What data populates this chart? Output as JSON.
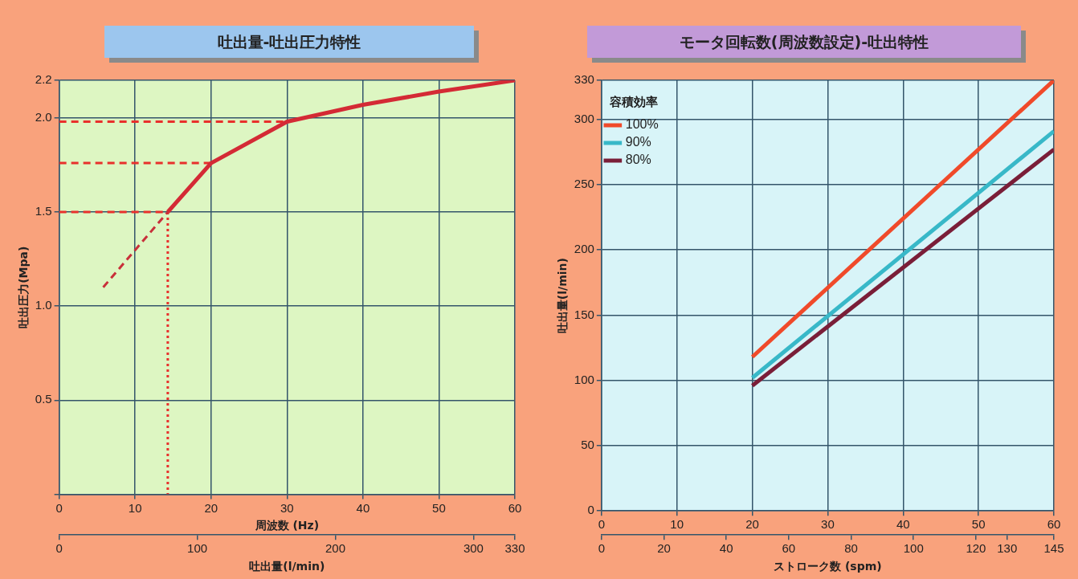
{
  "chart_data": [
    {
      "type": "line",
      "title": "吐出量-吐出圧力特性",
      "xlabel": "周波数 (Hz)",
      "ylabel": "吐出圧力(Mpa)",
      "x2label": "吐出量(l/min)",
      "xlim": [
        0,
        60
      ],
      "xticks": [
        0,
        10,
        20,
        30,
        40,
        50,
        60
      ],
      "ylim": [
        0,
        2.2
      ],
      "yticks": [
        {
          "value": 0,
          "label": null
        },
        0.5,
        {
          "value": 1,
          "label": "1.0"
        },
        1.5,
        {
          "value": 2,
          "label": "2.0"
        },
        2.2
      ],
      "x2lim": [
        0,
        330
      ],
      "x2ticks": [
        0,
        100,
        200,
        300,
        330
      ],
      "grid": true,
      "legend": false,
      "series": [
        {
          "color": "#c8303a",
          "line_style": "dashed",
          "x": [
            5.8,
            14.3
          ],
          "values": [
            1.1,
            1.5
          ]
        },
        {
          "color": "#d42a35",
          "x": [
            14.3,
            20,
            30,
            40,
            50,
            60
          ],
          "values": [
            1.5,
            1.76,
            1.98,
            2.07,
            2.14,
            2.2
          ]
        },
        {
          "color": "#e8302c",
          "line_style": "dashed",
          "x": [
            0,
            20
          ],
          "values": [
            1.76,
            1.76
          ]
        },
        {
          "color": "#e8302c",
          "line_style": "dashed",
          "x": [
            0,
            30
          ],
          "values": [
            1.98,
            1.98
          ]
        },
        {
          "color": "#e8302c",
          "line_style": "dashed",
          "x": [
            0,
            14.3
          ],
          "values": [
            1.5,
            1.5
          ]
        },
        {
          "color": "#e8302c",
          "line_style": "dotted",
          "x": [
            14.3,
            14.3
          ],
          "values": [
            1.5,
            0
          ]
        }
      ]
    },
    {
      "type": "line",
      "title": "モータ回転数(周波数設定)-吐出特性",
      "ylabel": "吐出量(l/min)",
      "x2label": "ストローク数 (spm)",
      "legend_title": "容積効率",
      "xlim": [
        0,
        60
      ],
      "xticks": [
        0,
        10,
        20,
        30,
        40,
        50,
        60
      ],
      "ylim": [
        0,
        330
      ],
      "yticks": [
        0,
        50,
        100,
        150,
        200,
        250,
        300,
        330
      ],
      "x2lim": [
        0,
        145
      ],
      "x2ticks": [
        0,
        20,
        40,
        60,
        80,
        100,
        120,
        130,
        145
      ],
      "grid": true,
      "legend": "top left",
      "series": [
        {
          "name": "100%",
          "color": "#f04a2a",
          "x": [
            20,
            60
          ],
          "values": [
            118,
            330
          ]
        },
        {
          "name": "90%",
          "color": "#38b8c8",
          "x": [
            20,
            60
          ],
          "values": [
            102,
            291
          ]
        },
        {
          "name": "80%",
          "color": "#7a1e38",
          "x": [
            20,
            60
          ],
          "values": [
            96,
            277
          ]
        }
      ]
    }
  ]
}
